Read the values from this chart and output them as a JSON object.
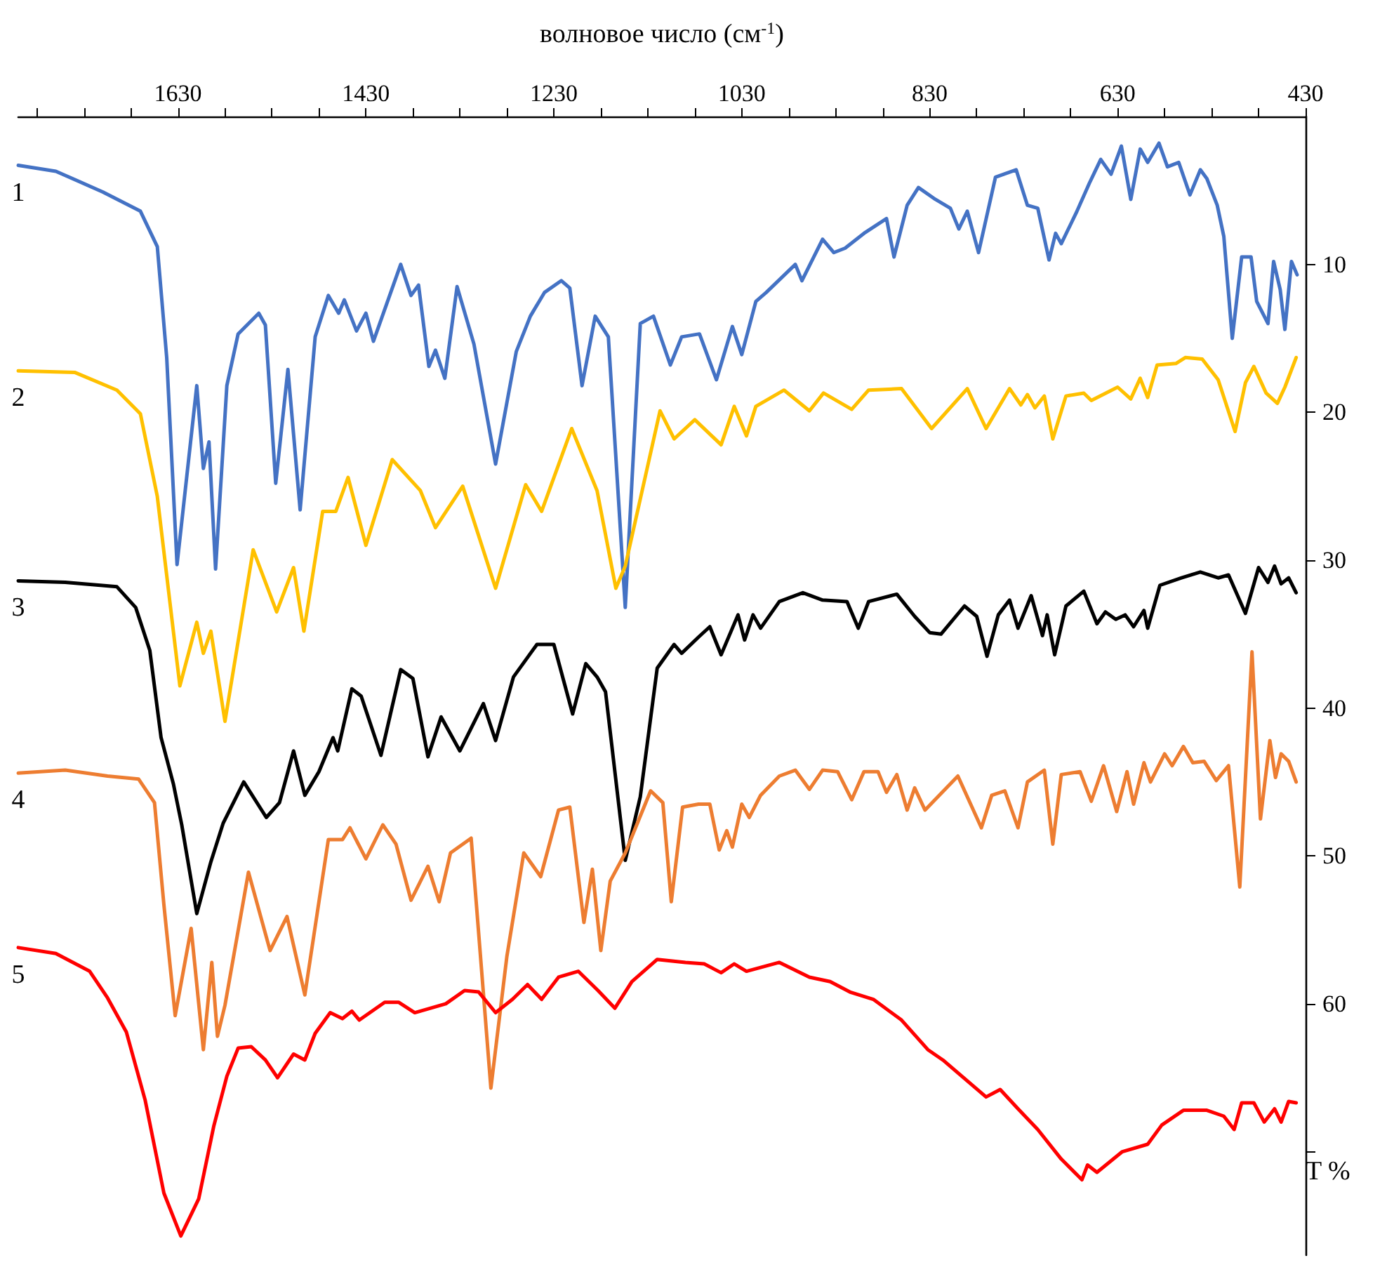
{
  "chart_data": {
    "type": "line",
    "xlabel": "волновое число (см$^{-1}$)",
    "ylabel": "T %",
    "xlim": [
      1800,
      430
    ],
    "ylim": [
      77,
      0
    ],
    "xticks": [
      {
        "value": 1780,
        "label": null
      },
      {
        "value": 1730,
        "label": null
      },
      {
        "value": 1680,
        "label": null
      },
      1630,
      {
        "value": 1580,
        "label": null
      },
      {
        "value": 1530,
        "label": null
      },
      {
        "value": 1480,
        "label": null
      },
      1430,
      {
        "value": 1380,
        "label": null
      },
      {
        "value": 1330,
        "label": null
      },
      {
        "value": 1280,
        "label": null
      },
      1230,
      {
        "value": 1180,
        "label": null
      },
      {
        "value": 1130,
        "label": null
      },
      {
        "value": 1080,
        "label": null
      },
      1030,
      {
        "value": 980,
        "label": null
      },
      {
        "value": 930,
        "label": null
      },
      {
        "value": 880,
        "label": null
      },
      830,
      {
        "value": 780,
        "label": null
      },
      {
        "value": 730,
        "label": null
      },
      {
        "value": 680,
        "label": null
      },
      630,
      {
        "value": 580,
        "label": null
      },
      {
        "value": 530,
        "label": null
      },
      {
        "value": 480,
        "label": null
      },
      430
    ],
    "yticks": [
      10,
      20,
      30,
      40,
      50,
      60,
      {
        "value": 70,
        "label": null
      }
    ],
    "series": [
      {
        "name": "1",
        "color": "#4472c4",
        "x": [
          1800,
          1760,
          1710,
          1670,
          1652,
          1642,
          1631,
          1610,
          1603,
          1597,
          1590,
          1578,
          1566,
          1544,
          1537,
          1526,
          1513,
          1500,
          1484,
          1470,
          1459,
          1453,
          1440,
          1430,
          1422,
          1393,
          1382,
          1374,
          1363,
          1356,
          1346,
          1333,
          1315,
          1292,
          1270,
          1255,
          1240,
          1222,
          1213,
          1200,
          1186,
          1172,
          1154,
          1138,
          1124,
          1106,
          1094,
          1075,
          1057,
          1040,
          1030,
          1015,
          1004,
          973,
          966,
          944,
          932,
          920,
          900,
          876,
          868,
          854,
          842,
          824,
          808,
          799,
          790,
          778,
          760,
          738,
          726,
          715,
          703,
          696,
          690,
          674,
          660,
          648,
          637,
          626,
          616,
          606,
          598,
          586,
          577,
          565,
          553,
          542,
          535,
          524,
          517,
          508,
          498,
          488,
          482,
          470,
          464,
          457,
          452,
          445,
          439
        ],
        "values": [
          3.3,
          3.7,
          5.1,
          6.4,
          8.8,
          16.3,
          30.3,
          18.2,
          23.8,
          22.0,
          30.6,
          18.2,
          14.7,
          13.3,
          14.1,
          24.8,
          17.1,
          26.6,
          14.9,
          12.1,
          13.3,
          12.4,
          14.5,
          13.3,
          15.2,
          10.0,
          12.1,
          11.4,
          16.9,
          15.8,
          17.7,
          11.5,
          15.4,
          23.5,
          15.9,
          13.5,
          11.9,
          11.1,
          11.6,
          18.2,
          13.5,
          14.9,
          33.2,
          14.0,
          13.5,
          16.8,
          14.9,
          14.7,
          17.8,
          14.2,
          16.1,
          12.5,
          11.9,
          10.0,
          11.1,
          8.3,
          9.2,
          8.9,
          7.9,
          6.9,
          9.5,
          6.0,
          4.8,
          5.6,
          6.2,
          7.6,
          6.4,
          9.2,
          4.1,
          3.6,
          6.0,
          6.2,
          9.7,
          7.9,
          8.6,
          6.5,
          4.5,
          2.9,
          3.9,
          2.0,
          5.6,
          2.2,
          3.1,
          1.8,
          3.4,
          3.1,
          5.3,
          3.6,
          4.2,
          6.0,
          8.1,
          15.0,
          9.5,
          9.5,
          12.5,
          14.0,
          9.8,
          11.7,
          14.4,
          9.8,
          10.7
        ]
      },
      {
        "name": "2",
        "color": "#ffc000",
        "x": [
          1800,
          1740,
          1695,
          1670,
          1652,
          1628,
          1610,
          1603,
          1595,
          1580,
          1550,
          1525,
          1507,
          1496,
          1476,
          1462,
          1449,
          1430,
          1402,
          1372,
          1356,
          1327,
          1292,
          1260,
          1243,
          1211,
          1184,
          1164,
          1154,
          1117,
          1102,
          1080,
          1052,
          1038,
          1025,
          1015,
          985,
          958,
          943,
          913,
          895,
          860,
          828,
          790,
          770,
          745,
          733,
          726,
          718,
          708,
          699,
          685,
          666,
          658,
          630,
          616,
          606,
          598,
          588,
          568,
          558,
          540,
          523,
          505,
          494,
          485,
          472,
          460,
          452,
          440
        ],
        "values": [
          17.2,
          17.3,
          18.5,
          20.1,
          25.7,
          38.5,
          34.2,
          36.3,
          34.8,
          40.9,
          29.3,
          33.5,
          30.5,
          34.8,
          26.7,
          26.7,
          24.4,
          29.0,
          23.2,
          25.3,
          27.8,
          25.0,
          31.9,
          24.9,
          26.7,
          21.1,
          25.3,
          31.9,
          30.4,
          19.9,
          21.8,
          20.5,
          22.2,
          19.6,
          21.6,
          19.6,
          18.5,
          19.9,
          18.7,
          19.8,
          18.5,
          18.4,
          21.1,
          18.4,
          21.1,
          18.4,
          19.5,
          18.8,
          19.7,
          18.9,
          21.8,
          18.9,
          18.7,
          19.2,
          18.3,
          19.1,
          17.7,
          19.0,
          16.8,
          16.7,
          16.3,
          16.4,
          17.8,
          21.3,
          18.0,
          16.9,
          18.7,
          19.4,
          18.3,
          16.3
        ]
      },
      {
        "name": "3",
        "color": "#000000",
        "x": [
          1800,
          1750,
          1695,
          1675,
          1660,
          1648,
          1635,
          1626,
          1610,
          1595,
          1582,
          1560,
          1536,
          1522,
          1507,
          1495,
          1480,
          1465,
          1460,
          1445,
          1435,
          1414,
          1393,
          1380,
          1364,
          1350,
          1330,
          1305,
          1292,
          1273,
          1248,
          1230,
          1210,
          1196,
          1184,
          1175,
          1154,
          1138,
          1120,
          1102,
          1094,
          1076,
          1064,
          1052,
          1034,
          1027,
          1018,
          1010,
          990,
          965,
          944,
          918,
          906,
          895,
          865,
          846,
          830,
          818,
          793,
          780,
          769,
          757,
          745,
          736,
          722,
          710,
          705,
          697,
          685,
          666,
          652,
          643,
          632,
          622,
          613,
          602,
          598,
          585,
          562,
          542,
          523,
          512,
          494,
          480,
          470,
          463,
          456,
          448,
          440
        ],
        "values": [
          31.4,
          31.5,
          31.8,
          33.2,
          36.1,
          42.0,
          45.1,
          47.9,
          53.9,
          50.4,
          47.8,
          45.0,
          47.4,
          46.4,
          42.9,
          45.9,
          44.3,
          42.0,
          42.9,
          38.7,
          39.2,
          43.2,
          37.4,
          38.0,
          43.3,
          40.6,
          42.9,
          39.7,
          42.2,
          37.9,
          35.7,
          35.7,
          40.4,
          37.0,
          37.9,
          38.9,
          50.3,
          46.0,
          37.3,
          35.7,
          36.3,
          35.2,
          34.5,
          36.4,
          33.7,
          35.4,
          33.7,
          34.6,
          32.8,
          32.2,
          32.7,
          32.8,
          34.6,
          32.8,
          32.3,
          33.8,
          34.9,
          35.0,
          33.1,
          33.8,
          36.5,
          33.7,
          32.7,
          34.6,
          32.4,
          35.1,
          33.7,
          36.4,
          33.1,
          32.1,
          34.3,
          33.5,
          34.0,
          33.7,
          34.5,
          33.4,
          34.6,
          31.7,
          31.2,
          30.8,
          31.2,
          31.0,
          33.6,
          30.5,
          31.5,
          30.4,
          31.6,
          31.2,
          32.2
        ]
      },
      {
        "name": "4",
        "color": "#ed7d31",
        "x": [
          1800,
          1750,
          1705,
          1672,
          1655,
          1645,
          1633,
          1616,
          1603,
          1594,
          1588,
          1580,
          1555,
          1532,
          1514,
          1495,
          1470,
          1455,
          1447,
          1430,
          1412,
          1398,
          1382,
          1364,
          1352,
          1340,
          1318,
          1297,
          1280,
          1262,
          1244,
          1225,
          1213,
          1198,
          1189,
          1180,
          1170,
          1154,
          1127,
          1114,
          1105,
          1093,
          1076,
          1064,
          1054,
          1046,
          1040,
          1030,
          1022,
          1010,
          990,
          973,
          958,
          944,
          928,
          913,
          900,
          885,
          876,
          865,
          854,
          846,
          835,
          800,
          775,
          764,
          750,
          736,
          726,
          708,
          699,
          690,
          670,
          658,
          645,
          631,
          620,
          613,
          602,
          595,
          580,
          572,
          560,
          550,
          538,
          525,
          512,
          500,
          487,
          478,
          468,
          462,
          456,
          448,
          440
        ],
        "values": [
          44.4,
          44.2,
          44.6,
          44.8,
          46.4,
          53.3,
          60.8,
          54.9,
          63.1,
          57.2,
          62.2,
          60.1,
          51.1,
          56.4,
          54.1,
          59.4,
          48.9,
          48.9,
          48.1,
          50.2,
          47.9,
          49.2,
          53.0,
          50.7,
          53.1,
          49.8,
          48.8,
          65.7,
          56.8,
          49.8,
          51.4,
          46.9,
          46.7,
          54.5,
          50.9,
          56.4,
          51.7,
          49.8,
          45.6,
          46.4,
          53.1,
          46.7,
          46.5,
          46.5,
          49.6,
          48.3,
          49.4,
          46.5,
          47.4,
          45.9,
          44.6,
          44.2,
          45.5,
          44.2,
          44.3,
          46.2,
          44.3,
          44.3,
          45.7,
          44.5,
          46.9,
          45.4,
          46.9,
          44.6,
          48.1,
          45.9,
          45.6,
          48.1,
          45.0,
          44.2,
          49.2,
          44.5,
          44.3,
          46.3,
          43.9,
          47.0,
          44.3,
          46.5,
          43.7,
          45.0,
          43.1,
          43.9,
          42.6,
          43.7,
          43.6,
          44.9,
          43.9,
          52.1,
          36.2,
          47.5,
          42.2,
          44.7,
          43.1,
          43.6,
          45.0
        ]
      },
      {
        "name": "5",
        "color": "#ff0000",
        "x": [
          1800,
          1760,
          1724,
          1705,
          1685,
          1665,
          1645,
          1627,
          1608,
          1592,
          1578,
          1566,
          1552,
          1537,
          1524,
          1507,
          1495,
          1484,
          1468,
          1455,
          1445,
          1437,
          1410,
          1395,
          1378,
          1345,
          1325,
          1310,
          1292,
          1274,
          1258,
          1243,
          1225,
          1204,
          1183,
          1165,
          1147,
          1120,
          1090,
          1070,
          1052,
          1038,
          1025,
          990,
          958,
          936,
          915,
          890,
          860,
          832,
          816,
          770,
          755,
          736,
          715,
          690,
          668,
          662,
          652,
          625,
          598,
          583,
          560,
          535,
          517,
          506,
          498,
          485,
          474,
          463,
          456,
          448,
          440
        ],
        "values": [
          56.2,
          56.6,
          57.8,
          59.6,
          61.9,
          66.5,
          72.8,
          75.7,
          73.2,
          68.3,
          64.9,
          63.0,
          62.9,
          63.8,
          65.0,
          63.4,
          63.8,
          62.0,
          60.6,
          61.0,
          60.5,
          61.1,
          59.9,
          59.9,
          60.6,
          60.0,
          59.1,
          59.2,
          60.6,
          59.7,
          58.7,
          59.7,
          58.2,
          57.8,
          59.1,
          60.3,
          58.5,
          57.0,
          57.2,
          57.3,
          57.9,
          57.3,
          57.8,
          57.2,
          58.2,
          58.5,
          59.2,
          59.7,
          61.1,
          63.1,
          63.8,
          66.3,
          65.8,
          67.1,
          68.5,
          70.5,
          71.9,
          70.9,
          71.4,
          70.0,
          69.5,
          68.2,
          67.2,
          67.2,
          67.6,
          68.5,
          66.7,
          66.7,
          68.0,
          67.1,
          68.0,
          66.6,
          66.7
        ]
      }
    ]
  }
}
